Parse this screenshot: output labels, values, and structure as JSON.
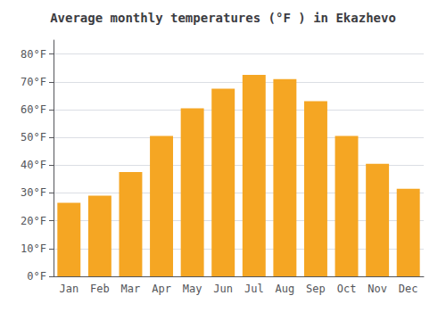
{
  "chart_data": {
    "type": "bar",
    "title": "Average monthly temperatures (°F ) in Ekazhevo",
    "categories": [
      "Jan",
      "Feb",
      "Mar",
      "Apr",
      "May",
      "Jun",
      "Jul",
      "Aug",
      "Sep",
      "Oct",
      "Nov",
      "Dec"
    ],
    "values": [
      26.5,
      29,
      37.5,
      50.5,
      60.5,
      67.5,
      72.5,
      71,
      63,
      50.5,
      40.5,
      31.5
    ],
    "color": "#F5A623",
    "ylim": [
      0,
      85
    ],
    "yticks": [
      {
        "value": 0,
        "label": "0°F"
      },
      {
        "value": 10,
        "label": "10°F"
      },
      {
        "value": 20,
        "label": "20°F"
      },
      {
        "value": 30,
        "label": "30°F"
      },
      {
        "value": 40,
        "label": "40°F"
      },
      {
        "value": 50,
        "label": "50°F"
      },
      {
        "value": 60,
        "label": "60°F"
      },
      {
        "value": 70,
        "label": "70°F"
      },
      {
        "value": 80,
        "label": "80°F"
      }
    ],
    "grid": true
  }
}
